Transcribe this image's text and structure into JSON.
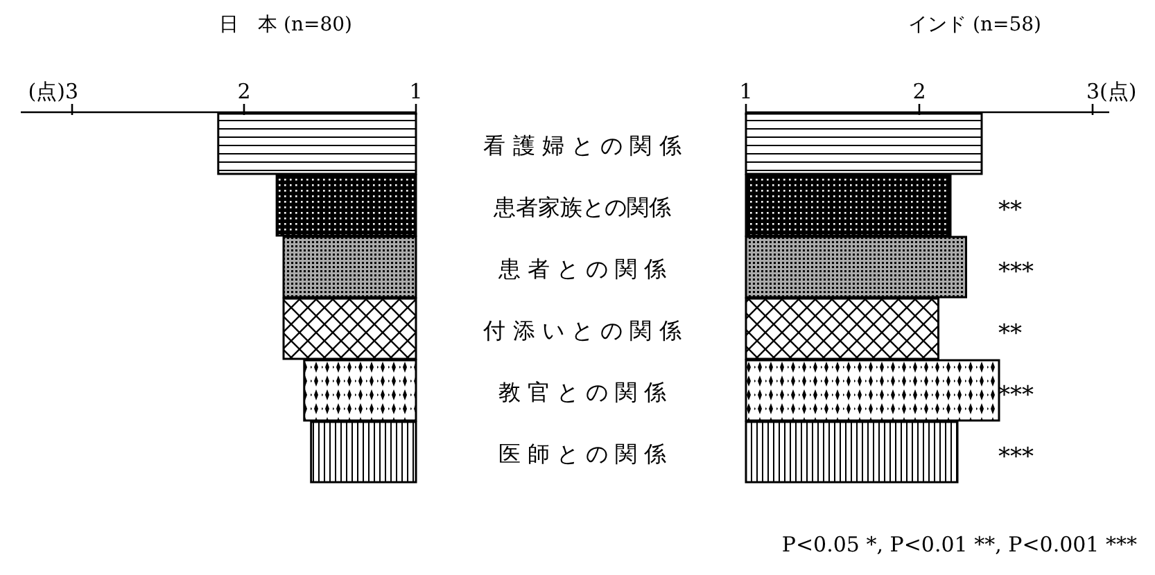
{
  "chart_data": [
    {
      "type": "bar",
      "orientation": "horizontal",
      "title": "日　本 (n=80)",
      "color": "#000000",
      "categories": [
        "看 護 婦 と の 関 係",
        "患者家族との関係",
        "患 者 と の 関 係",
        "付 添 い と の 関 係",
        "教 官 と の 関 係",
        "医 師 と の 関 係"
      ],
      "values": [
        2.15,
        1.81,
        1.77,
        1.77,
        1.65,
        1.61
      ],
      "xlim": [
        3,
        1
      ],
      "xticks": [
        {
          "value": 3,
          "label": "(点)3"
        },
        {
          "value": 2,
          "label": "2"
        },
        {
          "value": 1,
          "label": "1"
        }
      ]
    },
    {
      "type": "bar",
      "orientation": "horizontal",
      "title": "インド (n=58)",
      "color": "#000000",
      "categories": [
        null,
        null,
        null,
        null,
        null,
        null
      ],
      "values": [
        2.36,
        2.18,
        2.27,
        2.11,
        2.46,
        2.22
      ],
      "value_labels": [
        null,
        "**",
        "***",
        "**",
        "***",
        "***"
      ],
      "xlim": [
        1,
        3
      ],
      "xticks": [
        {
          "value": 1,
          "label": "1"
        },
        {
          "value": 2,
          "label": "2"
        },
        {
          "value": 3,
          "label": "3(点)"
        }
      ],
      "annotations": [
        "P<0.05 *,  P<0.01 **,  P<0.001 ***"
      ]
    }
  ]
}
